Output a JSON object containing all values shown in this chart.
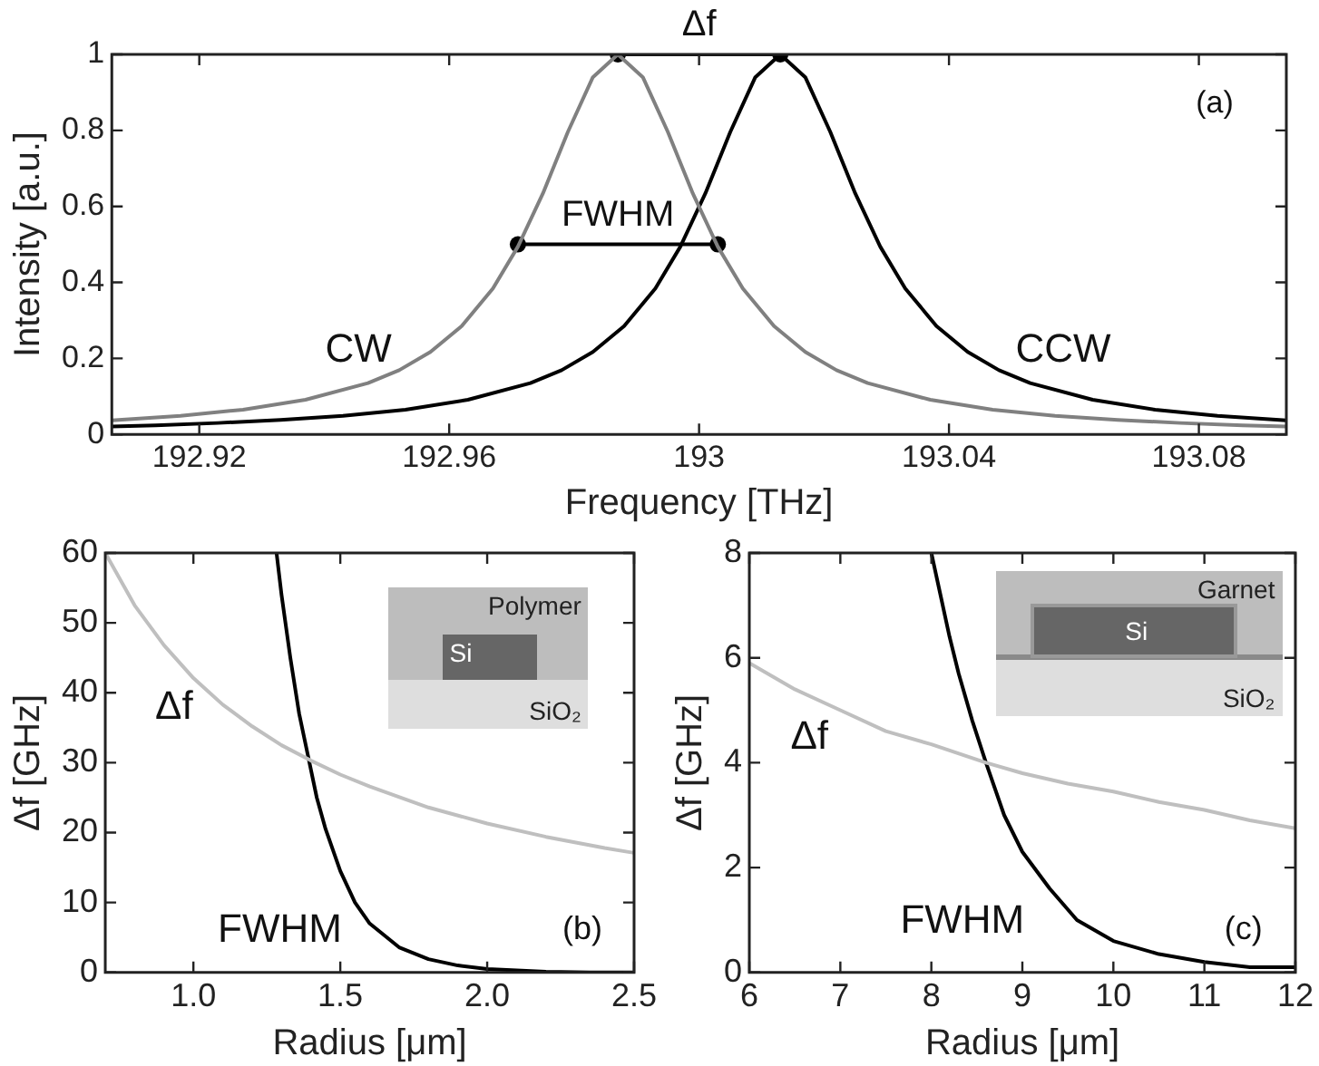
{
  "chart_data": [
    {
      "type": "line",
      "xlabel": "Frequency [THz]",
      "ylabel": "Intensity [a.u.]",
      "xlim": [
        192.906,
        193.094
      ],
      "xticks": [
        192.92,
        192.96,
        193,
        193.04,
        193.08
      ],
      "ylim": [
        0,
        1
      ],
      "yticks": [
        0,
        0.2,
        0.4,
        0.6,
        0.8,
        1
      ],
      "annotations": [
        "(a)",
        {
          "text": "Δf",
          "x": 193,
          "y": 1
        },
        {
          "text": "FWHM",
          "x": 192.987,
          "y": 0.5
        }
      ],
      "series": [
        {
          "name": "CW",
          "color": "#808080",
          "x": [
            192.906,
            192.917,
            192.927,
            192.937,
            192.947,
            192.952,
            192.957,
            192.962,
            192.967,
            192.971,
            192.975,
            192.979,
            192.983,
            192.987,
            192.991,
            192.995,
            192.999,
            193.003,
            193.007,
            193.012,
            193.017,
            193.022,
            193.027,
            193.037,
            193.047,
            193.057,
            193.067,
            193.077,
            193.087,
            193.094
          ],
          "values": [
            0.037,
            0.049,
            0.065,
            0.091,
            0.135,
            0.169,
            0.217,
            0.285,
            0.384,
            0.494,
            0.634,
            0.796,
            0.94,
            1,
            0.94,
            0.796,
            0.634,
            0.494,
            0.384,
            0.285,
            0.217,
            0.169,
            0.135,
            0.091,
            0.065,
            0.049,
            0.038,
            0.03,
            0.024,
            0.021
          ]
        },
        {
          "name": "CCW",
          "color": "#000000",
          "x": [
            192.906,
            192.913,
            192.923,
            192.933,
            192.943,
            192.953,
            192.963,
            192.973,
            192.978,
            192.983,
            192.988,
            192.993,
            192.997,
            193.001,
            193.005,
            193.009,
            193.013,
            193.017,
            193.021,
            193.025,
            193.029,
            193.033,
            193.038,
            193.043,
            193.048,
            193.053,
            193.063,
            193.073,
            193.083,
            193.094
          ],
          "values": [
            0.021,
            0.024,
            0.03,
            0.038,
            0.049,
            0.065,
            0.091,
            0.135,
            0.169,
            0.217,
            0.285,
            0.384,
            0.494,
            0.634,
            0.796,
            0.94,
            1,
            0.94,
            0.796,
            0.634,
            0.494,
            0.384,
            0.285,
            0.217,
            0.169,
            0.135,
            0.091,
            0.065,
            0.049,
            0.037
          ]
        },
        {
          "color": "#000000",
          "marker": "circle",
          "x": [
            192.987,
            193.013
          ],
          "values": [
            1,
            1
          ]
        },
        {
          "color": "#000000",
          "marker": "circle",
          "x": [
            192.971,
            193.003
          ],
          "values": [
            0.5,
            0.5
          ]
        }
      ]
    },
    {
      "type": "line",
      "xlabel": "Radius [μm]",
      "ylabel": "Δf [GHz]",
      "xlim": [
        0.7,
        2.5
      ],
      "xticks": [
        {
          "value": 1,
          "label": "1.0"
        },
        1.5,
        {
          "value": 2,
          "label": "2.0"
        },
        2.5
      ],
      "ylim": [
        0,
        60
      ],
      "yticks": [
        0,
        10,
        20,
        30,
        40,
        50,
        60
      ],
      "annotations": [
        "Polymer",
        "Si",
        "SiO₂",
        "(b)"
      ],
      "series": [
        {
          "name": "Δf",
          "color": "#bfbfbf",
          "x": [
            0.7,
            0.8,
            0.9,
            1.0,
            1.1,
            1.2,
            1.3,
            1.4,
            1.5,
            1.6,
            1.8,
            2.0,
            2.2,
            2.4,
            2.5
          ],
          "values": [
            60,
            52.5,
            46.8,
            42.1,
            38.3,
            35.2,
            32.5,
            30.3,
            28.3,
            26.6,
            23.6,
            21.3,
            19.4,
            17.8,
            17.1
          ]
        },
        {
          "name": "FWHM",
          "color": "#000000",
          "x": [
            1.283,
            1.3,
            1.33,
            1.36,
            1.39,
            1.42,
            1.45,
            1.5,
            1.55,
            1.6,
            1.7,
            1.8,
            1.9,
            2.0,
            2.1,
            2.2,
            2.35,
            2.5
          ],
          "values": [
            60,
            54,
            45,
            37,
            31,
            25,
            20.5,
            14.5,
            10,
            7,
            3.6,
            1.9,
            1,
            0.5,
            0.3,
            0.1,
            0,
            0
          ]
        }
      ]
    },
    {
      "type": "line",
      "xlabel": "Radius [μm]",
      "ylabel": "Δf [GHz]",
      "xlim": [
        6,
        12
      ],
      "xticks": [
        6,
        7,
        8,
        9,
        10,
        11,
        12
      ],
      "ylim": [
        0,
        8
      ],
      "yticks": [
        0,
        2,
        4,
        6,
        8
      ],
      "annotations": [
        "Garnet",
        "Si",
        "SiO₂",
        "(c)"
      ],
      "series": [
        {
          "name": "Δf",
          "color": "#bfbfbf",
          "x": [
            6,
            6.5,
            7,
            7.5,
            8,
            8.6,
            9,
            9.5,
            10,
            10.5,
            11,
            11.5,
            12
          ],
          "values": [
            5.9,
            5.4,
            5.0,
            4.6,
            4.35,
            4.0,
            3.8,
            3.6,
            3.45,
            3.25,
            3.1,
            2.9,
            2.75
          ]
        },
        {
          "name": "FWHM",
          "color": "#000000",
          "x": [
            8.0,
            8.1,
            8.2,
            8.3,
            8.45,
            8.6,
            8.8,
            9,
            9.3,
            9.6,
            10,
            10.5,
            11,
            11.5,
            12
          ],
          "values": [
            8,
            7.2,
            6.4,
            5.7,
            4.8,
            4.0,
            3.0,
            2.3,
            1.6,
            1.0,
            0.6,
            0.35,
            0.2,
            0.1,
            0.1
          ]
        }
      ]
    }
  ]
}
